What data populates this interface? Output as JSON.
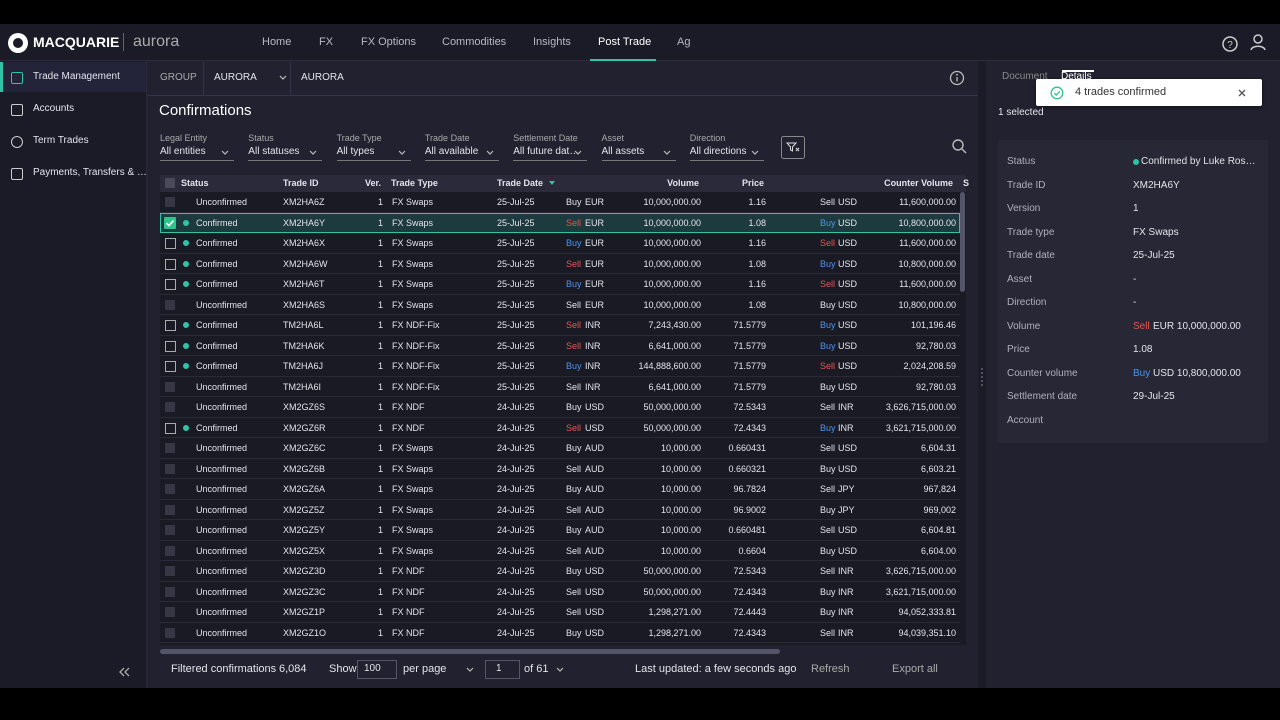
{
  "header": {
    "logo": "MACQUARIE",
    "app": "aurora",
    "nav": [
      "Home",
      "FX",
      "FX Options",
      "Commodities",
      "Insights",
      "Post Trade",
      "Ag"
    ],
    "active_nav": 5
  },
  "sidebar": {
    "items": [
      "Trade Management",
      "Accounts",
      "Term Trades",
      "Payments, Transfers & …"
    ],
    "active": 0
  },
  "group_bar": {
    "label": "GROUP",
    "group": "AURORA",
    "entity": "AURORA"
  },
  "page_title": "Confirmations",
  "filters": [
    {
      "label": "Legal Entity",
      "value": "All entities"
    },
    {
      "label": "Status",
      "value": "All statuses"
    },
    {
      "label": "Trade Type",
      "value": "All types"
    },
    {
      "label": "Trade Date",
      "value": "All available"
    },
    {
      "label": "Settlement Date",
      "value": "All future dat…"
    },
    {
      "label": "Asset",
      "value": "All assets"
    },
    {
      "label": "Direction",
      "value": "All directions"
    }
  ],
  "table": {
    "columns": [
      "Status",
      "Trade ID",
      "Ver.",
      "Trade Type",
      "Trade Date",
      "Volume",
      "Price",
      "Counter Volume",
      "S"
    ],
    "status_colors": {
      "Confirmed": "#2ec4a5"
    },
    "side_colors": {
      "Buy": "#4d94e8",
      "Sell": "#e5574f"
    },
    "selected_row": 1,
    "rows": [
      [
        "Unconfirmed",
        "XM2HA6Z",
        "1",
        "FX Swaps",
        "25-Jul-25",
        "Buy",
        "EUR",
        "10,000,000.00",
        "1.16",
        "Sell",
        "USD",
        "11,600,000.00"
      ],
      [
        "Confirmed",
        "XM2HA6Y",
        "1",
        "FX Swaps",
        "25-Jul-25",
        "Sell",
        "EUR",
        "10,000,000.00",
        "1.08",
        "Buy",
        "USD",
        "10,800,000.00"
      ],
      [
        "Confirmed",
        "XM2HA6X",
        "1",
        "FX Swaps",
        "25-Jul-25",
        "Buy",
        "EUR",
        "10,000,000.00",
        "1.16",
        "Sell",
        "USD",
        "11,600,000.00"
      ],
      [
        "Confirmed",
        "XM2HA6W",
        "1",
        "FX Swaps",
        "25-Jul-25",
        "Sell",
        "EUR",
        "10,000,000.00",
        "1.08",
        "Buy",
        "USD",
        "10,800,000.00"
      ],
      [
        "Confirmed",
        "XM2HA6T",
        "1",
        "FX Swaps",
        "25-Jul-25",
        "Buy",
        "EUR",
        "10,000,000.00",
        "1.16",
        "Sell",
        "USD",
        "11,600,000.00"
      ],
      [
        "Unconfirmed",
        "XM2HA6S",
        "1",
        "FX Swaps",
        "25-Jul-25",
        "Sell",
        "EUR",
        "10,000,000.00",
        "1.08",
        "Buy",
        "USD",
        "10,800,000.00"
      ],
      [
        "Confirmed",
        "TM2HA6L",
        "1",
        "FX NDF-Fix",
        "25-Jul-25",
        "Sell",
        "INR",
        "7,243,430.00",
        "71.5779",
        "Buy",
        "USD",
        "101,196.46"
      ],
      [
        "Confirmed",
        "TM2HA6K",
        "1",
        "FX NDF-Fix",
        "25-Jul-25",
        "Sell",
        "INR",
        "6,641,000.00",
        "71.5779",
        "Buy",
        "USD",
        "92,780.03"
      ],
      [
        "Confirmed",
        "TM2HA6J",
        "1",
        "FX NDF-Fix",
        "25-Jul-25",
        "Buy",
        "INR",
        "144,888,600.00",
        "71.5779",
        "Sell",
        "USD",
        "2,024,208.59"
      ],
      [
        "Unconfirmed",
        "TM2HA6I",
        "1",
        "FX NDF-Fix",
        "25-Jul-25",
        "Sell",
        "INR",
        "6,641,000.00",
        "71.5779",
        "Buy",
        "USD",
        "92,780.03"
      ],
      [
        "Unconfirmed",
        "XM2GZ6S",
        "1",
        "FX NDF",
        "24-Jul-25",
        "Buy",
        "USD",
        "50,000,000.00",
        "72.5343",
        "Sell",
        "INR",
        "3,626,715,000.00"
      ],
      [
        "Confirmed",
        "XM2GZ6R",
        "1",
        "FX NDF",
        "24-Jul-25",
        "Sell",
        "USD",
        "50,000,000.00",
        "72.4343",
        "Buy",
        "INR",
        "3,621,715,000.00"
      ],
      [
        "Unconfirmed",
        "XM2GZ6C",
        "1",
        "FX Swaps",
        "24-Jul-25",
        "Buy",
        "AUD",
        "10,000.00",
        "0.660431",
        "Sell",
        "USD",
        "6,604.31"
      ],
      [
        "Unconfirmed",
        "XM2GZ6B",
        "1",
        "FX Swaps",
        "24-Jul-25",
        "Sell",
        "AUD",
        "10,000.00",
        "0.660321",
        "Buy",
        "USD",
        "6,603.21"
      ],
      [
        "Unconfirmed",
        "XM2GZ6A",
        "1",
        "FX Swaps",
        "24-Jul-25",
        "Buy",
        "AUD",
        "10,000.00",
        "96.7824",
        "Sell",
        "JPY",
        "967,824"
      ],
      [
        "Unconfirmed",
        "XM2GZ5Z",
        "1",
        "FX Swaps",
        "24-Jul-25",
        "Sell",
        "AUD",
        "10,000.00",
        "96.9002",
        "Buy",
        "JPY",
        "969,002"
      ],
      [
        "Unconfirmed",
        "XM2GZ5Y",
        "1",
        "FX Swaps",
        "24-Jul-25",
        "Buy",
        "AUD",
        "10,000.00",
        "0.660481",
        "Sell",
        "USD",
        "6,604.81"
      ],
      [
        "Unconfirmed",
        "XM2GZ5X",
        "1",
        "FX Swaps",
        "24-Jul-25",
        "Sell",
        "AUD",
        "10,000.00",
        "0.6604",
        "Buy",
        "USD",
        "6,604.00"
      ],
      [
        "Unconfirmed",
        "XM2GZ3D",
        "1",
        "FX NDF",
        "24-Jul-25",
        "Buy",
        "USD",
        "50,000,000.00",
        "72.5343",
        "Sell",
        "INR",
        "3,626,715,000.00"
      ],
      [
        "Unconfirmed",
        "XM2GZ3C",
        "1",
        "FX NDF",
        "24-Jul-25",
        "Sell",
        "USD",
        "50,000,000.00",
        "72.4343",
        "Buy",
        "INR",
        "3,621,715,000.00"
      ],
      [
        "Unconfirmed",
        "XM2GZ1P",
        "1",
        "FX NDF",
        "24-Jul-25",
        "Sell",
        "USD",
        "1,298,271.00",
        "72.4443",
        "Buy",
        "INR",
        "94,052,333.81"
      ],
      [
        "Unconfirmed",
        "XM2GZ1O",
        "1",
        "FX NDF",
        "24-Jul-25",
        "Buy",
        "USD",
        "1,298,271.00",
        "72.4343",
        "Sell",
        "INR",
        "94,039,351.10"
      ]
    ]
  },
  "footer": {
    "filtered_label": "Filtered confirmations",
    "filtered_count": "6,084",
    "show": "Show",
    "page_size": "100",
    "per_page": "per page",
    "page": "1",
    "of_pages": "of 61",
    "last_updated": "Last updated: a few seconds ago",
    "refresh": "Refresh",
    "export": "Export all"
  },
  "details": {
    "tabs": [
      "Document",
      "Details"
    ],
    "active_tab": 1,
    "toast": "4 trades confirmed",
    "selected": "1 selected",
    "items": [
      {
        "label": "Status",
        "value": "Confirmed by Luke Ros…"
      },
      {
        "label": "Trade ID",
        "value": "XM2HA6Y"
      },
      {
        "label": "Version",
        "value": "1"
      },
      {
        "label": "Trade type",
        "value": "FX Swaps"
      },
      {
        "label": "Trade date",
        "value": "25-Jul-25"
      },
      {
        "label": "Asset",
        "value": "-"
      },
      {
        "label": "Direction",
        "value": "-"
      },
      {
        "label": "Volume",
        "side": "Sell",
        "value": "EUR 10,000,000.00"
      },
      {
        "label": "Price",
        "value": "1.08"
      },
      {
        "label": "Counter volume",
        "side": "Buy",
        "value": "USD 10,800,000.00"
      },
      {
        "label": "Settlement date",
        "value": "29-Jul-25"
      },
      {
        "label": "Account"
      }
    ]
  }
}
